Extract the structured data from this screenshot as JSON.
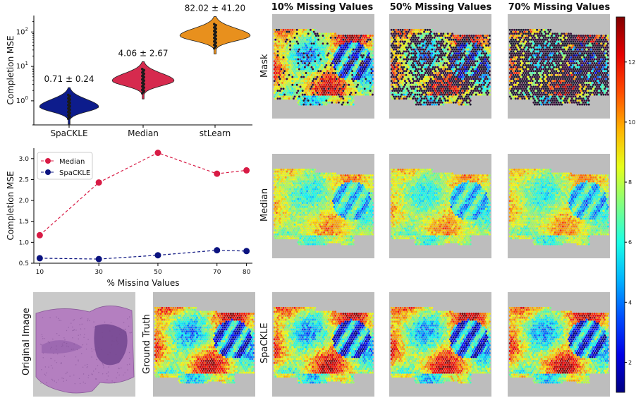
{
  "chart_data": [
    {
      "type": "violin",
      "ylabel": "Completion MSE",
      "yscale": "log",
      "ylim": [
        0.2,
        300
      ],
      "yticks": [
        "10^0",
        "10^1",
        "10^2"
      ],
      "categories": [
        "SpaCKLE",
        "Median",
        "stLearn"
      ],
      "annotations": [
        "0.71 ± 0.24",
        "4.06 ± 2.67",
        "82.02 ± 41.20"
      ],
      "means": [
        0.71,
        4.06,
        82.02
      ],
      "colors": [
        "#0d1c8c",
        "#d62a4e",
        "#e8901d"
      ]
    },
    {
      "type": "line",
      "xlabel": "% Missing Values",
      "ylabel": "Completion MSE",
      "x": [
        10,
        30,
        50,
        70,
        80
      ],
      "ylim": [
        0.5,
        3.25
      ],
      "yticks": [
        "0.5",
        "1.0",
        "1.5",
        "2.0",
        "2.5",
        "3.0"
      ],
      "xticks": [
        "10",
        "30",
        "50",
        "70",
        "80"
      ],
      "legend_position": "upper-left",
      "series": [
        {
          "name": "Median",
          "values": [
            1.17,
            2.43,
            3.14,
            2.64,
            2.72
          ],
          "color": "#d81b45"
        },
        {
          "name": "SpaCKLE",
          "values": [
            0.62,
            0.6,
            0.69,
            0.81,
            0.79
          ],
          "color": "#0b1380"
        }
      ]
    },
    {
      "type": "heatmap",
      "columns": [
        "10% Missing Values",
        "50% Missing Values",
        "70% Missing Values"
      ],
      "rows": [
        "Mask",
        "Median",
        "SpaCKLE"
      ],
      "extra_labels": [
        "Original Image",
        "Ground Truth"
      ],
      "colorbar": {
        "min": 1,
        "max": 13.5,
        "ticks": [
          "2",
          "4",
          "6",
          "8",
          "10",
          "12"
        ],
        "colormap": "jet"
      }
    }
  ],
  "text": {
    "top_ylabel": "Completion MSE",
    "mid_ylabel": "Completion MSE",
    "mid_xlabel": "% Missing Values",
    "legend_median": "Median",
    "legend_spackle": "SpaCKLE",
    "col1": "10% Missing Values",
    "col2": "50% Missing Values",
    "col3": "70% Missing Values",
    "row_mask": "Mask",
    "row_median": "Median",
    "row_spackle": "SpaCKLE",
    "orig": "Original Image",
    "gt": "Ground Truth"
  }
}
